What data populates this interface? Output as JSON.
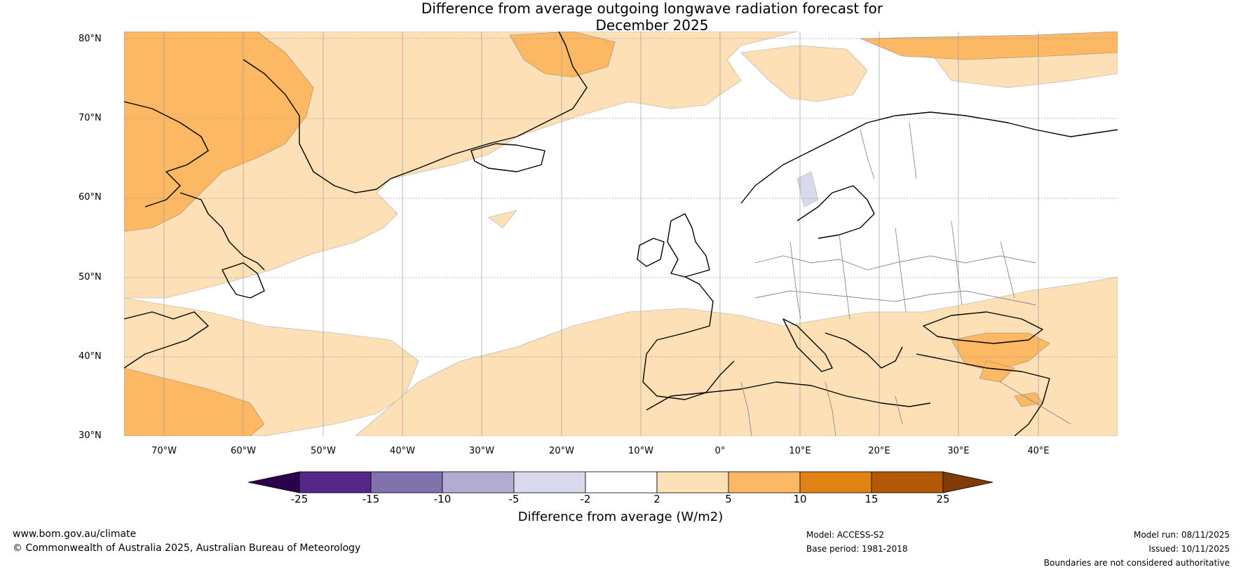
{
  "title_line1": "Difference from average outgoing longwave radiation forecast for",
  "title_line2": "December 2025",
  "latitude_labels": [
    "80°N",
    "70°N",
    "60°N",
    "50°N",
    "40°N",
    "30°N"
  ],
  "longitude_labels": [
    "70°W",
    "60°W",
    "50°W",
    "40°W",
    "30°W",
    "20°W",
    "10°W",
    "0°",
    "10°E",
    "20°E",
    "30°E",
    "40°E"
  ],
  "colorbar": {
    "ticks": [
      "-25",
      "-15",
      "-10",
      "-5",
      "-2",
      "2",
      "5",
      "10",
      "15",
      "25"
    ],
    "label": "Difference from average (W/m2)",
    "colors": {
      "below_-25": "#2d004b",
      "-25_-15": "#542788",
      "-15_-10": "#8073ac",
      "-10_-5": "#b2abd2",
      "-5_-2": "#d8daeb",
      "-2_2": "#ffffff",
      "2_5": "#fee0b6",
      "5_10": "#fdb863",
      "10_15": "#e08214",
      "15_25": "#b35806",
      "above_25": "#7f3b08"
    }
  },
  "footer": {
    "website": "www.bom.gov.au/climate",
    "copyright": "© Commonwealth of Australia 2025, Australian Bureau of Meteorology",
    "model": "Model: ACCESS-S2",
    "base_period": "Base period: 1981-2018",
    "model_run": "Model run: 08/11/2025",
    "issued": "Issued: 10/11/2025",
    "disclaimer": "Boundaries are not considered authoritative"
  }
}
